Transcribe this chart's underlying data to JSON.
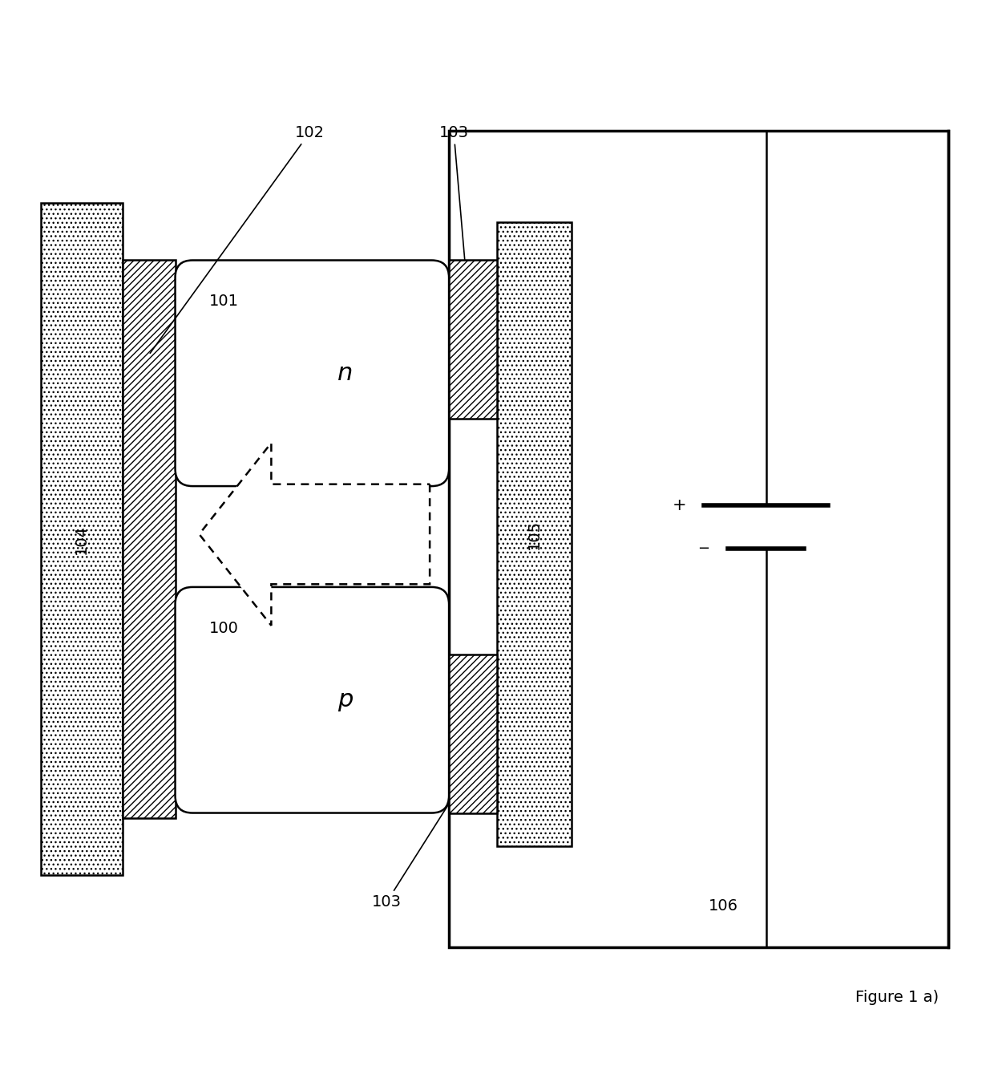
{
  "fig_width": 12.4,
  "fig_height": 13.44,
  "dpi": 100,
  "background_color": "#ffffff",
  "line_color": "#000000",
  "figure_label": "Figure 1 a)"
}
